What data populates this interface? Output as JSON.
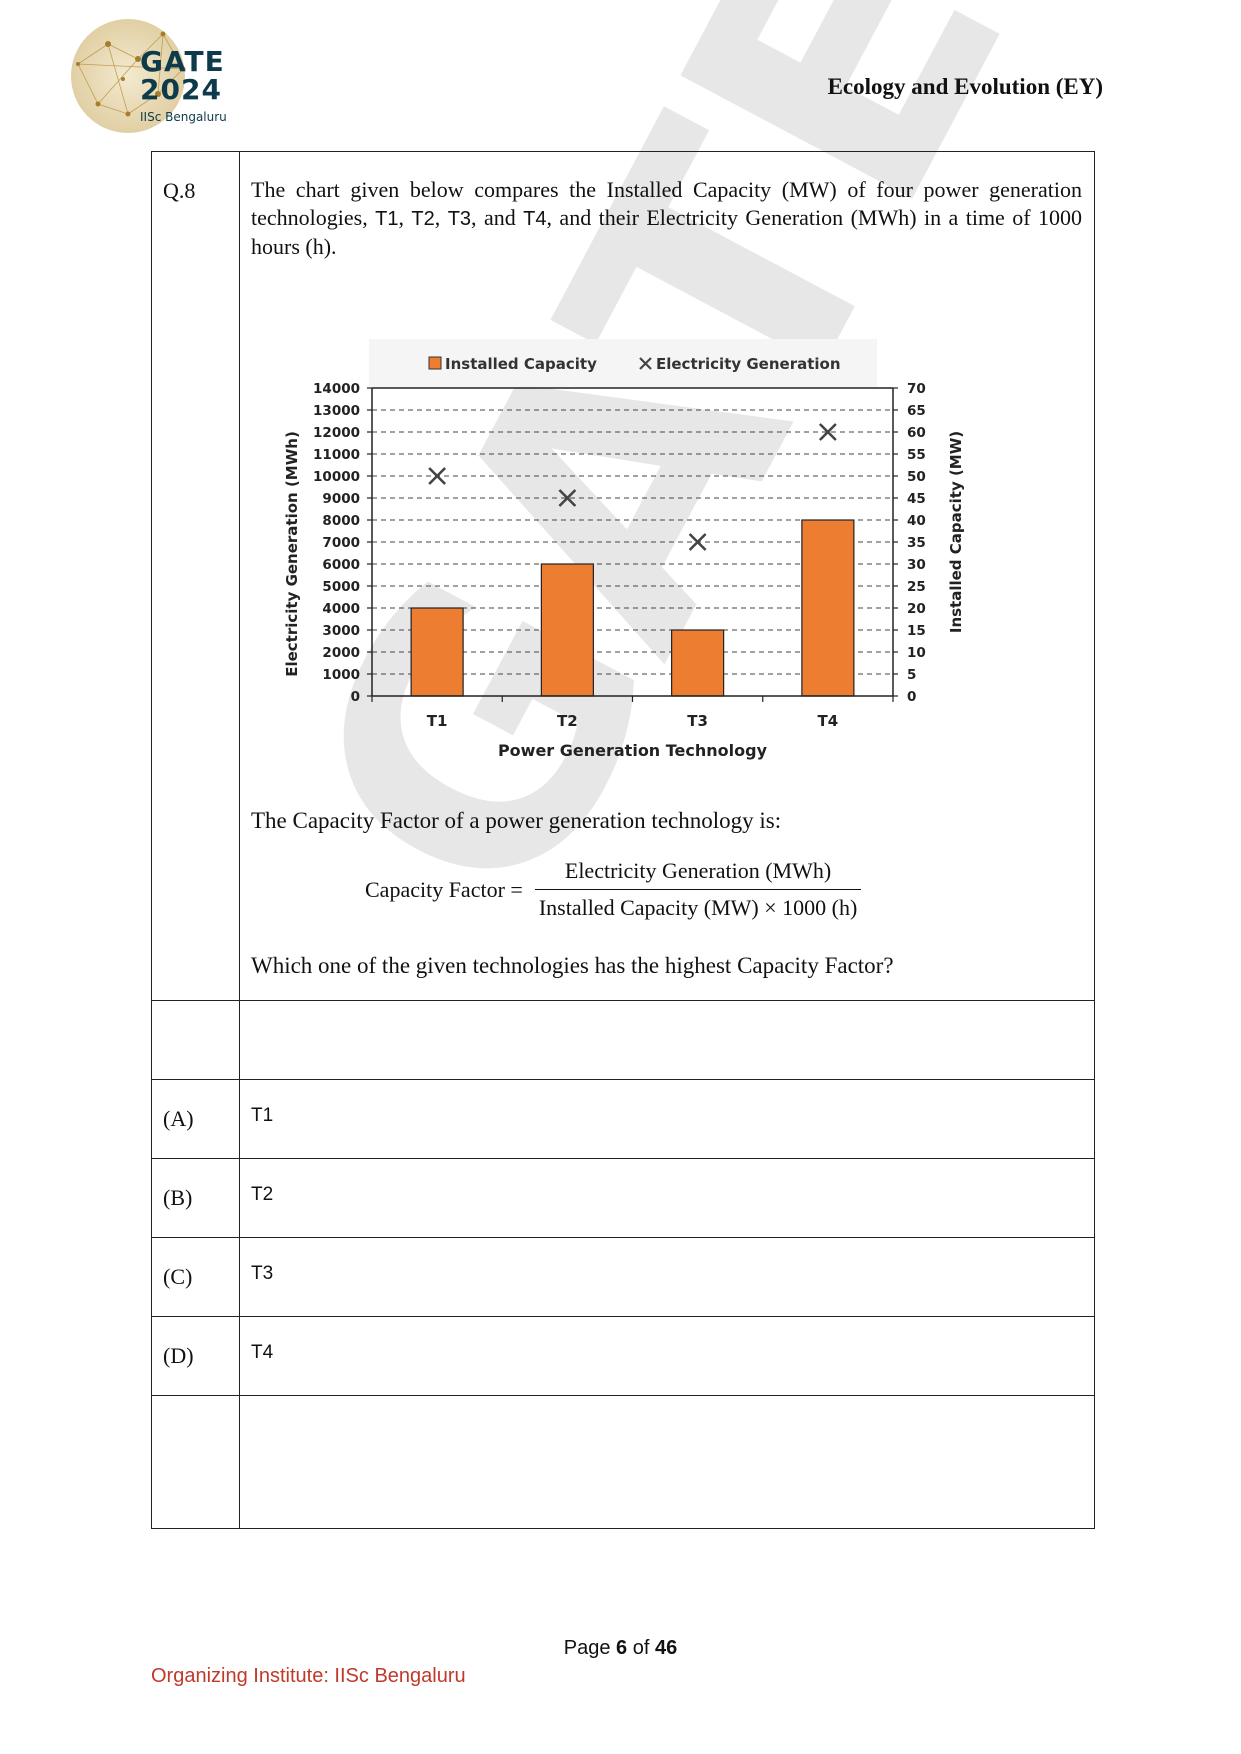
{
  "header": {
    "logo": {
      "line1": "GATE",
      "line2": "2024",
      "line3": "IISc Bengaluru"
    },
    "subject": "Ecology and Evolution (EY)"
  },
  "question": {
    "number": "Q.8",
    "intro": {
      "p1": "The chart given below compares the Installed Capacity (MW) of four power generation technologies, ",
      "t1": "T1",
      "sep1": ", ",
      "t2": "T2",
      "sep2": ", ",
      "t3": "T3",
      "sep3": ", and ",
      "t4": "T4",
      "p2": ", and their Electricity Generation (MWh) in a time of 1000 hours (h)."
    },
    "after_chart": "The Capacity Factor of a power generation technology is:",
    "formula": {
      "lhs": "Capacity Factor =",
      "numerator": "Electricity Generation (MWh)",
      "denominator": "Installed Capacity (MW) × 1000 (h)"
    },
    "ask": "Which one of the given technologies has the highest Capacity Factor?"
  },
  "options": [
    {
      "label": "(A)",
      "text": "T1"
    },
    {
      "label": "(B)",
      "text": "T2"
    },
    {
      "label": "(C)",
      "text": "T3"
    },
    {
      "label": "(D)",
      "text": "T4"
    }
  ],
  "chart_data": {
    "type": "bar",
    "categories": [
      "T1",
      "T2",
      "T3",
      "T4"
    ],
    "series": [
      {
        "name": "Installed Capacity",
        "kind": "bar",
        "axis": "right",
        "values": [
          20,
          30,
          15,
          40
        ],
        "color": "#ed7d31"
      },
      {
        "name": "Electricity Generation",
        "kind": "marker-x",
        "axis": "left",
        "values": [
          10000,
          9000,
          7000,
          12000
        ],
        "color": "#444444"
      }
    ],
    "xlabel": "Power Generation Technology",
    "ylabel_left": "Electricity Generation (MWh)",
    "ylabel_right": "Installed Capacity (MW)",
    "ylim_left": [
      0,
      14000
    ],
    "ylim_right": [
      0,
      70
    ],
    "yticks_left": [
      "0",
      "1000",
      "2000",
      "3000",
      "4000",
      "5000",
      "6000",
      "7000",
      "8000",
      "9000",
      "10000",
      "11000",
      "12000",
      "13000",
      "14000"
    ],
    "yticks_right": [
      "0",
      "5",
      "10",
      "15",
      "20",
      "25",
      "30",
      "35",
      "40",
      "45",
      "50",
      "55",
      "60",
      "65",
      "70"
    ],
    "grid": "dashed",
    "legend": "top"
  },
  "watermark": "GATE 2024",
  "footer": {
    "page_prefix": "Page ",
    "page_num": "6",
    "page_mid": " of ",
    "page_total": "46",
    "institute": "Organizing Institute: IISc Bengaluru"
  }
}
